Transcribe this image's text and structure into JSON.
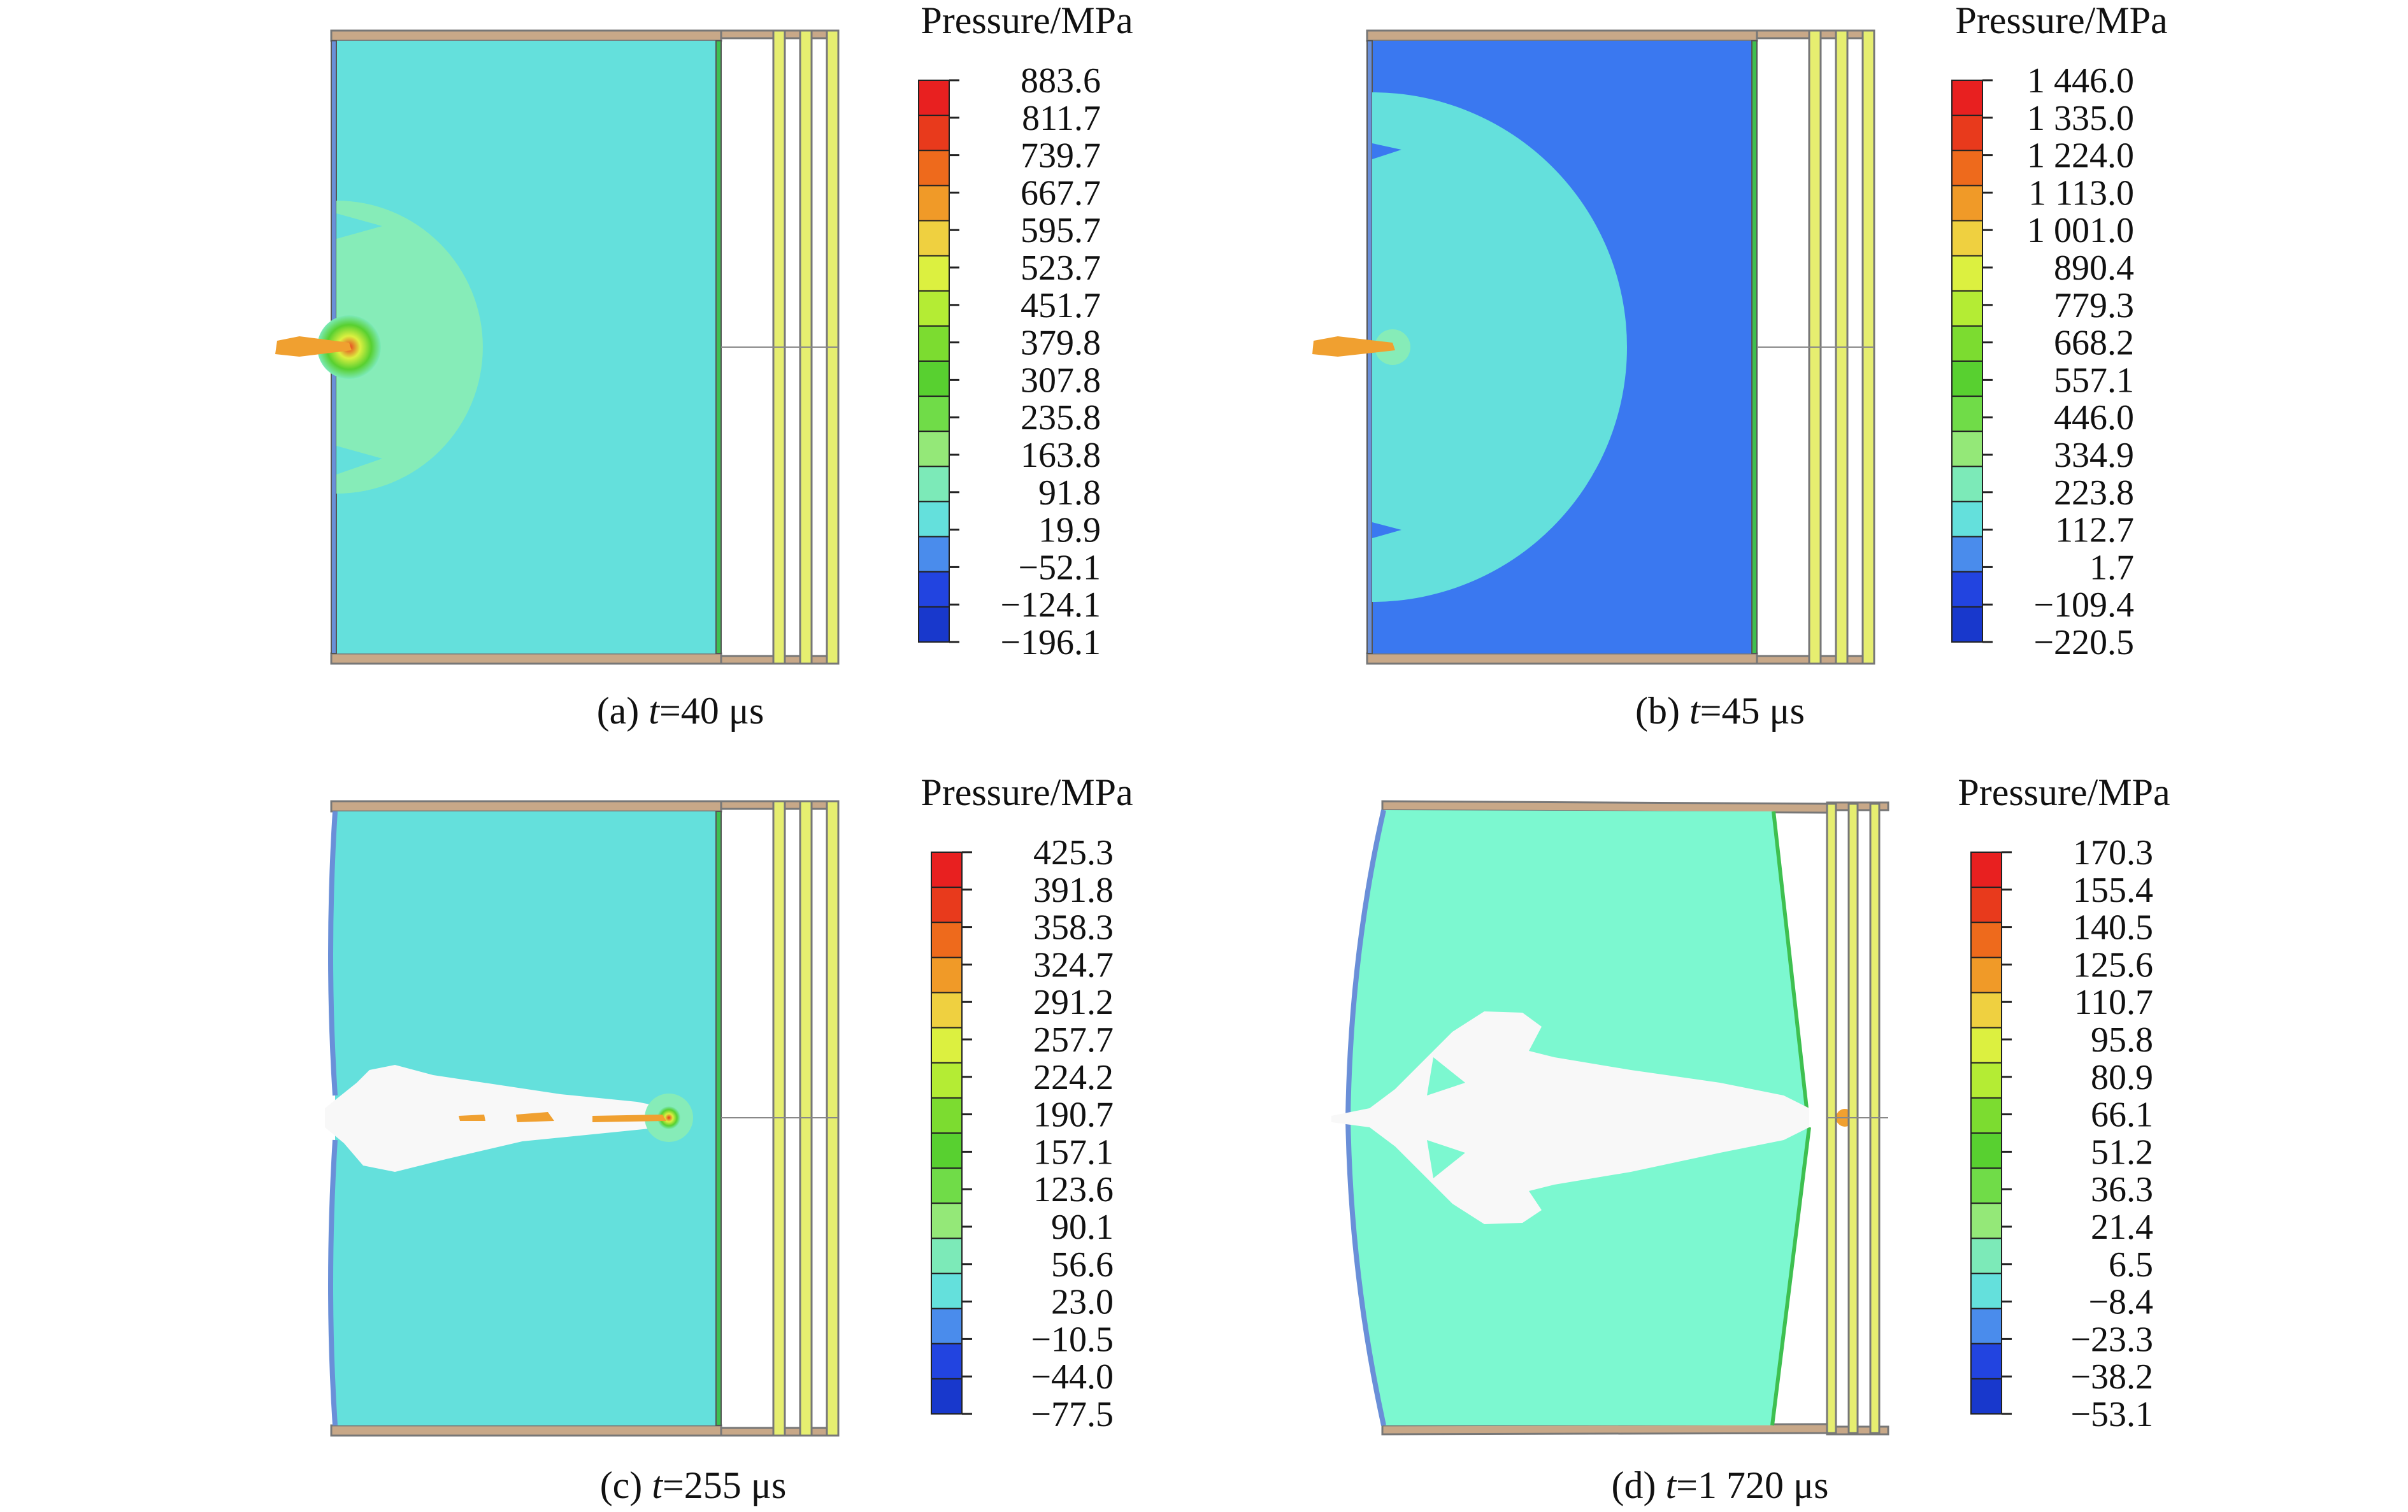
{
  "panels": [
    {
      "id": "a",
      "caption_prefix": "(a) ",
      "caption_var": "t",
      "caption_value": "=40 μs",
      "legend_title": "Pressure/MPa",
      "legend_values": [
        "883.6",
        "811.7",
        "739.7",
        "667.7",
        "595.7",
        "523.7",
        "451.7",
        "379.8",
        "307.8",
        "235.8",
        "163.8",
        "91.8",
        "19.9",
        "−52.1",
        "−124.1",
        "−196.1"
      ],
      "background_color": "#64e0dc"
    },
    {
      "id": "b",
      "caption_prefix": "(b) ",
      "caption_var": "t",
      "caption_value": "=45 μs",
      "legend_title": "Pressure/MPa",
      "legend_values": [
        "1 446.0",
        "1 335.0",
        "1 224.0",
        "1 113.0",
        "1 001.0",
        "890.4",
        "779.3",
        "668.2",
        "557.1",
        "446.0",
        "334.9",
        "223.8",
        "112.7",
        "1.7",
        "−109.4",
        "−220.5"
      ],
      "background_color": "#3a78f0"
    },
    {
      "id": "c",
      "caption_prefix": "(c) ",
      "caption_var": "t",
      "caption_value": "=255 μs",
      "legend_title": "Pressure/MPa",
      "legend_values": [
        "425.3",
        "391.8",
        "358.3",
        "324.7",
        "291.2",
        "257.7",
        "224.2",
        "190.7",
        "157.1",
        "123.6",
        "90.1",
        "56.6",
        "23.0",
        "−10.5",
        "−44.0",
        "−77.5"
      ],
      "background_color": "#64e0dc"
    },
    {
      "id": "d",
      "caption_prefix": "(d) ",
      "caption_var": "t",
      "caption_value": "=1 720 μs",
      "legend_title": "Pressure/MPa",
      "legend_values": [
        "170.3",
        "155.4",
        "140.5",
        "125.6",
        "110.7",
        "95.8",
        "80.9",
        "66.1",
        "51.2",
        "36.3",
        "21.4",
        "6.5",
        "−8.4",
        "−23.3",
        "−38.2",
        "−53.1"
      ],
      "background_color": "#7cf8d0"
    }
  ],
  "colormap": [
    "#e82020",
    "#e83a1c",
    "#ee6a1c",
    "#f09a28",
    "#efd040",
    "#dcf040",
    "#b4ec34",
    "#7cdc30",
    "#58d030",
    "#70dc48",
    "#94e878",
    "#7ceab8",
    "#64e0dc",
    "#4a8cec",
    "#2244e0",
    "#1838cc"
  ]
}
